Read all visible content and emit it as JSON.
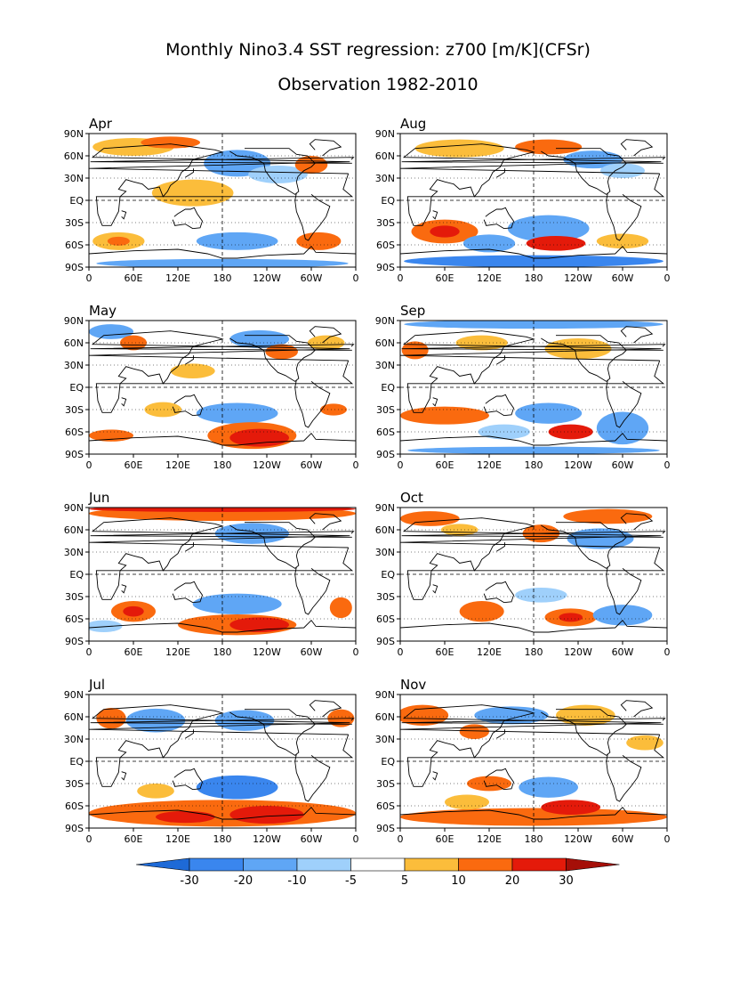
{
  "title": {
    "line1": "Monthly Nino3.4 SST regression: z700 [m/K](CFSr)",
    "line2": "Observation 1982-2010"
  },
  "axes": {
    "lat_labels": [
      "90N",
      "60N",
      "30N",
      "EQ",
      "30S",
      "60S",
      "90S"
    ],
    "lon_labels": [
      "0",
      "60E",
      "120E",
      "180",
      "120W",
      "60W",
      "0"
    ]
  },
  "colors": {
    "n30": "#1e6ad7",
    "n20": "#3a86ee",
    "n10": "#5fa6f5",
    "n5": "#9fd0fb",
    "white": "#ffffff",
    "p5": "#fbbd3b",
    "p10": "#fa6a0f",
    "p20": "#e41a0a",
    "p30": "#a50f08",
    "coast": "#000000"
  },
  "colorbar": {
    "levels": [
      "-30",
      "-20",
      "-10",
      "-5",
      "5",
      "10",
      "20",
      "30"
    ]
  },
  "panels": [
    {
      "label": "Apr",
      "blobs": [
        {
          "lon": 60,
          "lat": 72,
          "rx": 55,
          "ry": 12,
          "lvl": "p5"
        },
        {
          "lon": 110,
          "lat": 78,
          "rx": 40,
          "ry": 8,
          "lvl": "p10"
        },
        {
          "lon": 200,
          "lat": 50,
          "rx": 45,
          "ry": 18,
          "lvl": "n10"
        },
        {
          "lon": 255,
          "lat": 35,
          "rx": 40,
          "ry": 12,
          "lvl": "n5"
        },
        {
          "lon": 300,
          "lat": 48,
          "rx": 22,
          "ry": 12,
          "lvl": "p10"
        },
        {
          "lon": 140,
          "lat": 10,
          "rx": 55,
          "ry": 18,
          "lvl": "p5"
        },
        {
          "lon": 40,
          "lat": -55,
          "rx": 35,
          "ry": 12,
          "lvl": "p5"
        },
        {
          "lon": 40,
          "lat": -55,
          "rx": 15,
          "ry": 6,
          "lvl": "p10"
        },
        {
          "lon": 200,
          "lat": -55,
          "rx": 55,
          "ry": 12,
          "lvl": "n10"
        },
        {
          "lon": 310,
          "lat": -55,
          "rx": 30,
          "ry": 12,
          "lvl": "p10"
        },
        {
          "lon": 180,
          "lat": -85,
          "rx": 170,
          "ry": 6,
          "lvl": "n10"
        }
      ]
    },
    {
      "label": "Aug",
      "blobs": [
        {
          "lon": 80,
          "lat": 70,
          "rx": 60,
          "ry": 12,
          "lvl": "p5"
        },
        {
          "lon": 200,
          "lat": 72,
          "rx": 45,
          "ry": 10,
          "lvl": "p10"
        },
        {
          "lon": 260,
          "lat": 55,
          "rx": 40,
          "ry": 12,
          "lvl": "n10"
        },
        {
          "lon": 300,
          "lat": 40,
          "rx": 30,
          "ry": 10,
          "lvl": "n5"
        },
        {
          "lon": 60,
          "lat": -42,
          "rx": 45,
          "ry": 16,
          "lvl": "p10"
        },
        {
          "lon": 60,
          "lat": -42,
          "rx": 20,
          "ry": 8,
          "lvl": "p20"
        },
        {
          "lon": 120,
          "lat": -58,
          "rx": 35,
          "ry": 12,
          "lvl": "n10"
        },
        {
          "lon": 200,
          "lat": -38,
          "rx": 55,
          "ry": 18,
          "lvl": "n10"
        },
        {
          "lon": 210,
          "lat": -58,
          "rx": 40,
          "ry": 10,
          "lvl": "p20"
        },
        {
          "lon": 300,
          "lat": -55,
          "rx": 35,
          "ry": 10,
          "lvl": "p5"
        },
        {
          "lon": 180,
          "lat": -82,
          "rx": 175,
          "ry": 8,
          "lvl": "n20"
        }
      ]
    },
    {
      "label": "May",
      "blobs": [
        {
          "lon": 30,
          "lat": 75,
          "rx": 30,
          "ry": 10,
          "lvl": "n10"
        },
        {
          "lon": 60,
          "lat": 60,
          "rx": 18,
          "ry": 10,
          "lvl": "p10"
        },
        {
          "lon": 230,
          "lat": 65,
          "rx": 40,
          "ry": 12,
          "lvl": "n10"
        },
        {
          "lon": 260,
          "lat": 48,
          "rx": 22,
          "ry": 10,
          "lvl": "p10"
        },
        {
          "lon": 320,
          "lat": 60,
          "rx": 25,
          "ry": 10,
          "lvl": "p5"
        },
        {
          "lon": 140,
          "lat": 22,
          "rx": 30,
          "ry": 10,
          "lvl": "p5"
        },
        {
          "lon": 100,
          "lat": -30,
          "rx": 25,
          "ry": 10,
          "lvl": "p5"
        },
        {
          "lon": 200,
          "lat": -35,
          "rx": 55,
          "ry": 14,
          "lvl": "n10"
        },
        {
          "lon": 220,
          "lat": -65,
          "rx": 60,
          "ry": 18,
          "lvl": "p10"
        },
        {
          "lon": 230,
          "lat": -68,
          "rx": 40,
          "ry": 12,
          "lvl": "p20"
        },
        {
          "lon": 30,
          "lat": -65,
          "rx": 30,
          "ry": 8,
          "lvl": "p10"
        },
        {
          "lon": 330,
          "lat": -30,
          "rx": 18,
          "ry": 8,
          "lvl": "p10"
        }
      ]
    },
    {
      "label": "Sep",
      "blobs": [
        {
          "lon": 180,
          "lat": 85,
          "rx": 175,
          "ry": 6,
          "lvl": "n10"
        },
        {
          "lon": 20,
          "lat": 50,
          "rx": 18,
          "ry": 12,
          "lvl": "p10"
        },
        {
          "lon": 110,
          "lat": 60,
          "rx": 35,
          "ry": 10,
          "lvl": "p5"
        },
        {
          "lon": 240,
          "lat": 52,
          "rx": 45,
          "ry": 14,
          "lvl": "p5"
        },
        {
          "lon": 60,
          "lat": -38,
          "rx": 60,
          "ry": 12,
          "lvl": "p10"
        },
        {
          "lon": 200,
          "lat": -35,
          "rx": 45,
          "ry": 14,
          "lvl": "n10"
        },
        {
          "lon": 230,
          "lat": -60,
          "rx": 30,
          "ry": 10,
          "lvl": "p20"
        },
        {
          "lon": 300,
          "lat": -55,
          "rx": 35,
          "ry": 22,
          "lvl": "n10"
        },
        {
          "lon": 140,
          "lat": -60,
          "rx": 35,
          "ry": 10,
          "lvl": "n5"
        },
        {
          "lon": 180,
          "lat": -85,
          "rx": 170,
          "ry": 5,
          "lvl": "n10"
        }
      ]
    },
    {
      "label": "Jun",
      "blobs": [
        {
          "lon": 180,
          "lat": 82,
          "rx": 180,
          "ry": 10,
          "lvl": "p10"
        },
        {
          "lon": 180,
          "lat": 88,
          "rx": 180,
          "ry": 4,
          "lvl": "p20"
        },
        {
          "lon": 220,
          "lat": 55,
          "rx": 50,
          "ry": 14,
          "lvl": "n10"
        },
        {
          "lon": 60,
          "lat": -50,
          "rx": 30,
          "ry": 14,
          "lvl": "p10"
        },
        {
          "lon": 60,
          "lat": -50,
          "rx": 14,
          "ry": 7,
          "lvl": "p20"
        },
        {
          "lon": 200,
          "lat": -40,
          "rx": 60,
          "ry": 14,
          "lvl": "n10"
        },
        {
          "lon": 200,
          "lat": -68,
          "rx": 80,
          "ry": 14,
          "lvl": "p10"
        },
        {
          "lon": 230,
          "lat": -68,
          "rx": 40,
          "ry": 10,
          "lvl": "p20"
        },
        {
          "lon": 340,
          "lat": -45,
          "rx": 15,
          "ry": 14,
          "lvl": "p10"
        },
        {
          "lon": 20,
          "lat": -70,
          "rx": 25,
          "ry": 8,
          "lvl": "n5"
        }
      ]
    },
    {
      "label": "Oct",
      "blobs": [
        {
          "lon": 40,
          "lat": 75,
          "rx": 40,
          "ry": 10,
          "lvl": "p10"
        },
        {
          "lon": 280,
          "lat": 78,
          "rx": 60,
          "ry": 10,
          "lvl": "p10"
        },
        {
          "lon": 80,
          "lat": 60,
          "rx": 25,
          "ry": 8,
          "lvl": "p5"
        },
        {
          "lon": 190,
          "lat": 55,
          "rx": 25,
          "ry": 12,
          "lvl": "p10"
        },
        {
          "lon": 270,
          "lat": 48,
          "rx": 45,
          "ry": 14,
          "lvl": "n10"
        },
        {
          "lon": 110,
          "lat": -50,
          "rx": 30,
          "ry": 14,
          "lvl": "p10"
        },
        {
          "lon": 230,
          "lat": -58,
          "rx": 35,
          "ry": 12,
          "lvl": "p10"
        },
        {
          "lon": 230,
          "lat": -58,
          "rx": 16,
          "ry": 6,
          "lvl": "p20"
        },
        {
          "lon": 300,
          "lat": -55,
          "rx": 40,
          "ry": 14,
          "lvl": "n10"
        },
        {
          "lon": 190,
          "lat": -28,
          "rx": 35,
          "ry": 10,
          "lvl": "n5"
        }
      ]
    },
    {
      "label": "Jul",
      "blobs": [
        {
          "lon": 90,
          "lat": 55,
          "rx": 40,
          "ry": 16,
          "lvl": "n10"
        },
        {
          "lon": 210,
          "lat": 55,
          "rx": 40,
          "ry": 14,
          "lvl": "n10"
        },
        {
          "lon": 30,
          "lat": 58,
          "rx": 20,
          "ry": 14,
          "lvl": "p10"
        },
        {
          "lon": 340,
          "lat": 58,
          "rx": 18,
          "ry": 12,
          "lvl": "p10"
        },
        {
          "lon": 200,
          "lat": -35,
          "rx": 55,
          "ry": 16,
          "lvl": "n20"
        },
        {
          "lon": 180,
          "lat": -70,
          "rx": 180,
          "ry": 18,
          "lvl": "p10"
        },
        {
          "lon": 240,
          "lat": -72,
          "rx": 50,
          "ry": 12,
          "lvl": "p20"
        },
        {
          "lon": 130,
          "lat": -75,
          "rx": 40,
          "ry": 8,
          "lvl": "p20"
        },
        {
          "lon": 90,
          "lat": -40,
          "rx": 25,
          "ry": 10,
          "lvl": "p5"
        }
      ]
    },
    {
      "label": "Nov",
      "blobs": [
        {
          "lon": 30,
          "lat": 62,
          "rx": 35,
          "ry": 14,
          "lvl": "p10"
        },
        {
          "lon": 150,
          "lat": 62,
          "rx": 50,
          "ry": 12,
          "lvl": "n10"
        },
        {
          "lon": 250,
          "lat": 62,
          "rx": 40,
          "ry": 14,
          "lvl": "p5"
        },
        {
          "lon": 100,
          "lat": 40,
          "rx": 20,
          "ry": 10,
          "lvl": "p10"
        },
        {
          "lon": 330,
          "lat": 25,
          "rx": 25,
          "ry": 10,
          "lvl": "p5"
        },
        {
          "lon": 120,
          "lat": -30,
          "rx": 30,
          "ry": 10,
          "lvl": "p10"
        },
        {
          "lon": 200,
          "lat": -35,
          "rx": 40,
          "ry": 14,
          "lvl": "n10"
        },
        {
          "lon": 180,
          "lat": -75,
          "rx": 180,
          "ry": 12,
          "lvl": "p10"
        },
        {
          "lon": 230,
          "lat": -62,
          "rx": 40,
          "ry": 10,
          "lvl": "p20"
        },
        {
          "lon": 90,
          "lat": -55,
          "rx": 30,
          "ry": 10,
          "lvl": "p5"
        }
      ]
    }
  ]
}
